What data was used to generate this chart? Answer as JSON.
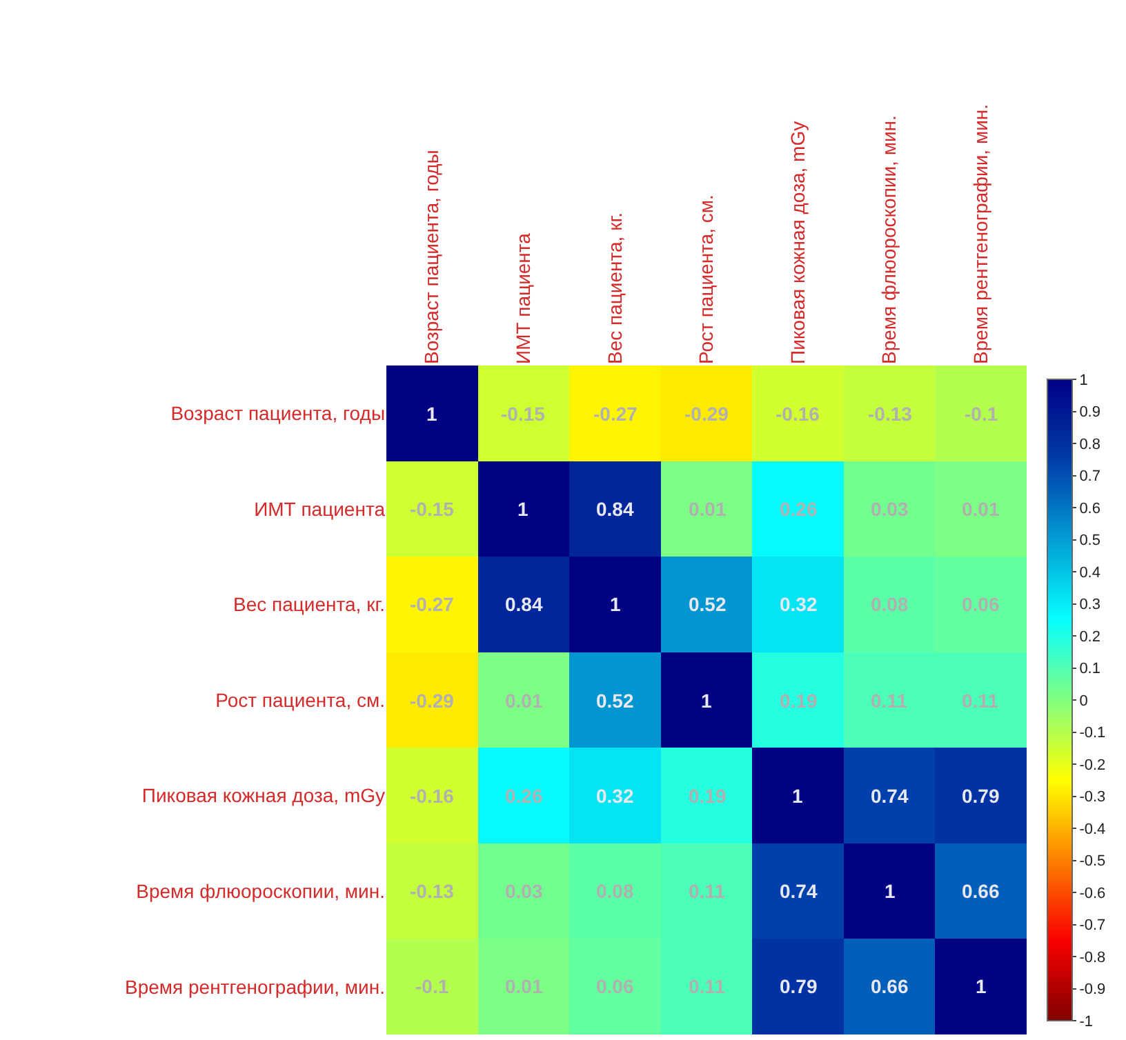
{
  "chart_data": {
    "type": "heatmap",
    "categories": [
      "Возраст пациента, годы",
      "ИМТ пациента",
      "Вес пациента, кг.",
      "Рост пациента, см.",
      "Пиковая кожная доза, mGy",
      "Время флюороскопии, мин.",
      "Время рентгенографии, мин."
    ],
    "y_categories": [
      "Возраст пациента, годы",
      "ИМТ пациента",
      "Вес пациента, кг.",
      "Рост пациента, см.",
      "Пиковая кожная доза, mGy",
      "Время флюороскопии, мин.",
      "Время рентгенографии, мин."
    ],
    "cells": [
      [
        1,
        -0.15,
        -0.27,
        -0.29,
        -0.16,
        -0.13,
        -0.1
      ],
      [
        -0.15,
        1,
        0.84,
        0.01,
        0.26,
        0.03,
        0.01
      ],
      [
        -0.27,
        0.84,
        1,
        0.52,
        0.32,
        0.08,
        0.06
      ],
      [
        -0.29,
        0.01,
        0.52,
        1,
        0.19,
        0.11,
        0.11
      ],
      [
        -0.16,
        0.26,
        0.32,
        0.19,
        1,
        0.74,
        0.79
      ],
      [
        -0.13,
        0.03,
        0.08,
        0.11,
        0.74,
        1,
        0.66
      ],
      [
        -0.1,
        0.01,
        0.06,
        0.11,
        0.79,
        0.66,
        1
      ]
    ],
    "data_labels": true,
    "clim": [
      -1,
      1
    ],
    "cticks": [
      -1,
      -0.9,
      -0.8,
      -0.7,
      -0.6,
      -0.5,
      -0.4,
      -0.3,
      -0.2,
      -0.1,
      0,
      0.1,
      0.2,
      0.3,
      0.4,
      0.5,
      0.6,
      0.7,
      0.8,
      0.9,
      1
    ]
  }
}
